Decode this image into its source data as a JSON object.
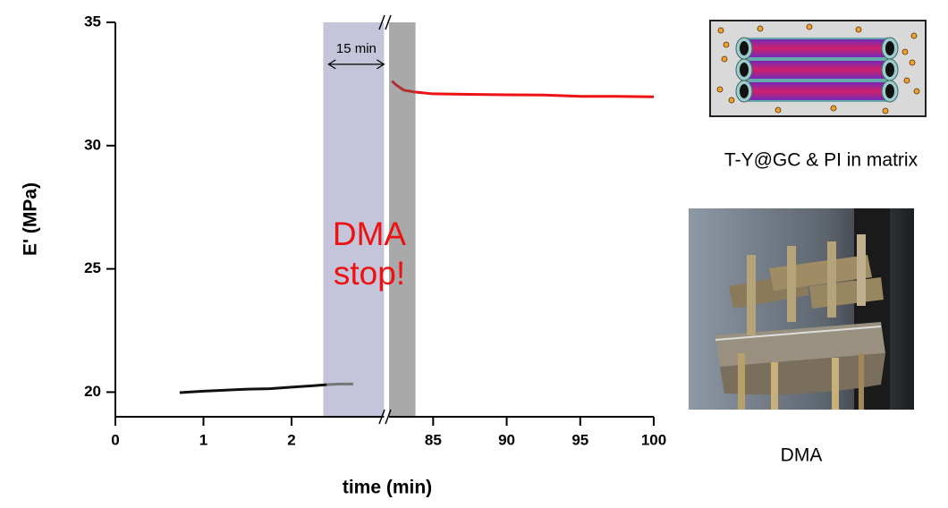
{
  "chart_data": {
    "type": "line",
    "ylabel": "E' (MPa)",
    "xlabel": "time (min)",
    "ylim": [
      19,
      35
    ],
    "yticks": [
      20,
      25,
      30,
      35
    ],
    "x_segments": [
      {
        "xlim": [
          0,
          3.05
        ],
        "xticks": [
          0,
          1,
          2
        ]
      },
      {
        "xlim": [
          82,
          100
        ],
        "xticks": [
          85,
          90,
          95,
          100
        ]
      }
    ],
    "bands": [
      {
        "segment": 0,
        "range": [
          2.36,
          3.05
        ],
        "color": "#c4c4da"
      },
      {
        "segment": 1,
        "range": [
          82,
          83.8
        ],
        "color": "#a9a9a9"
      }
    ],
    "series": [
      {
        "segment": 0,
        "color": "#111111",
        "x": [
          0.73,
          1,
          1.25,
          1.5,
          1.75,
          2,
          2.25,
          2.4
        ],
        "values": [
          19.98,
          20.04,
          20.08,
          20.12,
          20.14,
          20.2,
          20.26,
          20.3
        ]
      },
      {
        "segment": 0,
        "color": "#777777",
        "x": [
          2.4,
          2.55,
          2.7
        ],
        "values": [
          20.3,
          20.33,
          20.33
        ]
      },
      {
        "segment": 1,
        "color": "#b03030",
        "x": [
          82.2,
          82.5,
          83,
          83.8
        ],
        "values": [
          32.62,
          32.45,
          32.25,
          32.17
        ]
      },
      {
        "segment": 1,
        "color": "#ee1111",
        "x": [
          83.8,
          85,
          87.5,
          90,
          92.5,
          95,
          97.5,
          100
        ],
        "values": [
          32.17,
          32.1,
          32.08,
          32.06,
          32.05,
          32.0,
          32.0,
          31.98
        ]
      }
    ],
    "interval": {
      "text": "15 min",
      "segment": 0,
      "x": [
        2.42,
        3.05
      ],
      "y": 33.3
    },
    "stop_label": {
      "lines": [
        "DMA",
        "stop!"
      ],
      "color": "#ee1111"
    }
  },
  "schematic_caption": "T-Y@GC & PI in matrix",
  "photo_caption": "DMA"
}
